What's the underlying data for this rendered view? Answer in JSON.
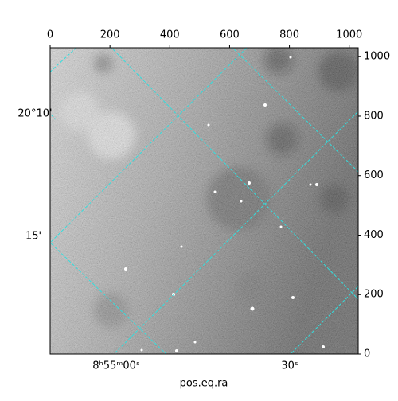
{
  "chart_data": {
    "type": "image",
    "xlabel": "pos.eq.ra",
    "xlim": [
      0,
      1030
    ],
    "xticks": [
      0,
      200,
      400,
      600,
      800,
      1000
    ],
    "ylim": [
      0,
      1030
    ],
    "yticks": [
      0,
      200,
      400,
      600,
      800,
      1000
    ],
    "ra_ticks": [
      "8ʰ55ᵐ00ˢ",
      "30ˢ"
    ],
    "dec_ticks": [
      "20°10'",
      "15'"
    ],
    "grid_color": "#33dddd"
  }
}
